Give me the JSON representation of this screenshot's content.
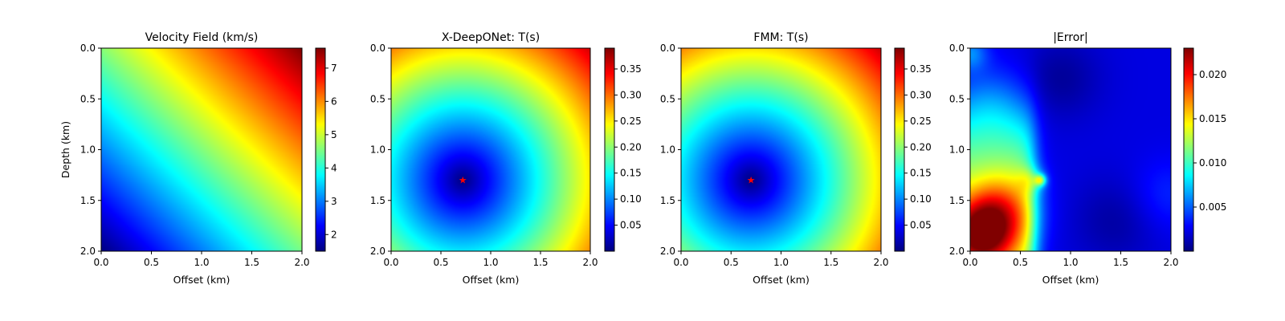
{
  "colors": {
    "colormap": "jet",
    "source_marker": "#ff0000",
    "axes": "#000000"
  },
  "chart_data": [
    {
      "type": "heatmap",
      "title": "Velocity Field (km/s)",
      "xlabel": "Offset (km)",
      "ylabel": "Depth (km)",
      "xlim": [
        0.0,
        2.0
      ],
      "ylim": [
        2.0,
        0.0
      ],
      "x_ticks": [
        "0.0",
        "0.5",
        "1.0",
        "1.5",
        "2.0"
      ],
      "y_ticks": [
        "0.0",
        "0.5",
        "1.0",
        "1.5",
        "2.0"
      ],
      "colorbar": {
        "range": [
          1.5,
          7.6
        ],
        "ticks": [
          "2",
          "3",
          "4",
          "5",
          "6",
          "7"
        ]
      },
      "field": "velocity = 1.5 + 1.5*offset + 1.55*(2 - depth)"
    },
    {
      "type": "heatmap",
      "title": "X-DeepONet: T(s)",
      "xlabel": "Offset (km)",
      "ylabel": "",
      "xlim": [
        0.0,
        2.0
      ],
      "ylim": [
        2.0,
        0.0
      ],
      "x_ticks": [
        "0.0",
        "0.5",
        "1.0",
        "1.5",
        "2.0"
      ],
      "y_ticks": [
        "0.0",
        "0.5",
        "1.0",
        "1.5",
        "2.0"
      ],
      "colorbar": {
        "range": [
          0.0,
          0.39
        ],
        "ticks": [
          "0.05",
          "0.10",
          "0.15",
          "0.20",
          "0.25",
          "0.30",
          "0.35"
        ]
      },
      "source": {
        "offset": 0.72,
        "depth": 1.3
      },
      "field": "traveltime from source"
    },
    {
      "type": "heatmap",
      "title": "FMM: T(s)",
      "xlabel": "Offset (km)",
      "ylabel": "",
      "xlim": [
        0.0,
        2.0
      ],
      "ylim": [
        2.0,
        0.0
      ],
      "x_ticks": [
        "0.0",
        "0.5",
        "1.0",
        "1.5",
        "2.0"
      ],
      "y_ticks": [
        "0.0",
        "0.5",
        "1.0",
        "1.5",
        "2.0"
      ],
      "colorbar": {
        "range": [
          0.0,
          0.39
        ],
        "ticks": [
          "0.05",
          "0.10",
          "0.15",
          "0.20",
          "0.25",
          "0.30",
          "0.35"
        ]
      },
      "source": {
        "offset": 0.7,
        "depth": 1.3
      },
      "field": "traveltime from source"
    },
    {
      "type": "heatmap",
      "title": "|Error|",
      "xlabel": "Offset (km)",
      "ylabel": "",
      "xlim": [
        0.0,
        2.0
      ],
      "ylim": [
        2.0,
        0.0
      ],
      "x_ticks": [
        "0.0",
        "0.5",
        "1.0",
        "1.5",
        "2.0"
      ],
      "y_ticks": [
        "0.0",
        "0.5",
        "1.0",
        "1.5",
        "2.0"
      ],
      "colorbar": {
        "range": [
          0.0,
          0.023
        ],
        "ticks": [
          "0.005",
          "0.010",
          "0.015",
          "0.020"
        ]
      },
      "hotspots": [
        {
          "offset": 0.1,
          "depth": 1.85,
          "value": 0.021
        },
        {
          "offset": 0.7,
          "depth": 1.3,
          "value": 0.017
        }
      ],
      "field": "absolute difference between X-DeepONet and FMM traveltimes"
    }
  ]
}
